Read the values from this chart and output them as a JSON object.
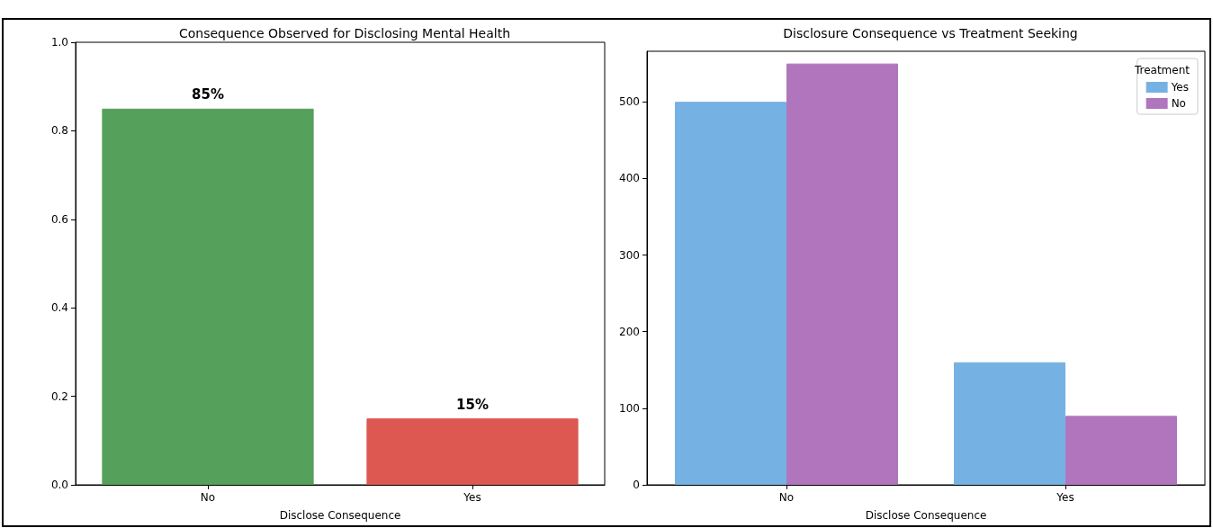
{
  "chart_data": [
    {
      "type": "bar",
      "title": "Consequence Observed for Disclosing Mental Health",
      "xlabel": "Disclose Consequence",
      "categories": [
        "No",
        "Yes"
      ],
      "values": [
        0.85,
        0.15
      ],
      "colors": [
        "#55a05a",
        "#dd5850"
      ],
      "value_labels": [
        "85%",
        "15%"
      ],
      "ylim": [
        0,
        1
      ],
      "yticks": [
        {
          "value": 0,
          "label": "0.0"
        },
        0.2,
        0.4,
        0.6,
        0.8,
        {
          "value": 1,
          "label": "1.0"
        }
      ],
      "grid": false,
      "legend": false
    },
    {
      "type": "bar",
      "title": "Disclosure Consequence vs Treatment Seeking",
      "xlabel": "Disclose Consequence",
      "legend_title": "Treatment",
      "categories": [
        "No",
        "Yes"
      ],
      "series": [
        {
          "name": "Yes",
          "color": "#76b1e3",
          "values": [
            500,
            160
          ]
        },
        {
          "name": "No",
          "color": "#b175bd",
          "values": [
            550,
            90
          ]
        }
      ],
      "ylim": [
        0,
        566
      ],
      "yticks": [
        0,
        100,
        200,
        300,
        400,
        500
      ],
      "grid": false,
      "legend": "top right"
    }
  ]
}
